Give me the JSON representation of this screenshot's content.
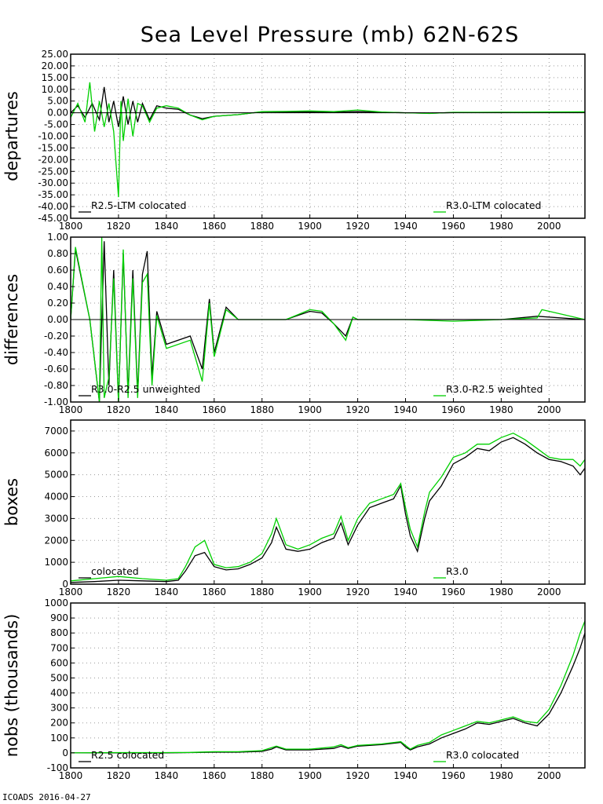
{
  "title": "Sea Level Pressure (mb) 62N-62S",
  "footer": "ICOADS 2016-04-27",
  "colors": {
    "r25": "#000000",
    "r30": "#00d000"
  },
  "chart_data": [
    {
      "type": "line",
      "id": "departures",
      "ylabel": "departures",
      "xlim": [
        1800,
        2015
      ],
      "ylim": [
        -45,
        25
      ],
      "xticks": [
        1800,
        1820,
        1840,
        1860,
        1880,
        1900,
        1920,
        1940,
        1960,
        1980,
        2000
      ],
      "xtick_labels": [
        "1800",
        "1820",
        "1840",
        "1860",
        "1880",
        "1900",
        "1920",
        "1940",
        "1960",
        "1980",
        "2000"
      ],
      "yticks": [
        25,
        20,
        15,
        10,
        5,
        0,
        -5,
        -10,
        -15,
        -20,
        -25,
        -30,
        -35,
        -40,
        -45
      ],
      "ytick_labels": [
        "25.00",
        "20.00",
        "15.00",
        "10.00",
        "5.00",
        "0.00",
        "-5.00",
        "-10.00",
        "-15.00",
        "-20.00",
        "-25.00",
        "-30.00",
        "-35.00",
        "-40.00",
        "-45.00"
      ],
      "zero_line": true,
      "legend": [
        {
          "label": "R2.5-LTM colocated",
          "position": "bottom-left"
        },
        {
          "label": "R3.0-LTM colocated",
          "position": "bottom-right"
        }
      ],
      "series": [
        {
          "name": "R2.5-LTM colocated",
          "x": [
            1800,
            1803,
            1806,
            1809,
            1812,
            1814,
            1816,
            1818,
            1820,
            1822,
            1824,
            1826,
            1828,
            1830,
            1833,
            1836,
            1840,
            1845,
            1850,
            1855,
            1860,
            1870,
            1880,
            1890,
            1900,
            1910,
            1920,
            1930,
            1940,
            1950,
            1960,
            1980,
            2000,
            2015
          ],
          "y": [
            0,
            3,
            -2,
            4,
            -3,
            11,
            -4,
            5,
            -6,
            7,
            -5,
            5,
            -4,
            4,
            -3,
            3,
            2,
            1.5,
            -1,
            -2.5,
            -1.5,
            -0.8,
            0.4,
            0.3,
            0.3,
            0.2,
            0.5,
            0.2,
            0,
            -0.2,
            0.1,
            0.2,
            0.1,
            0.3
          ]
        },
        {
          "name": "R3.0-LTM colocated",
          "x": [
            1800,
            1803,
            1806,
            1808,
            1810,
            1812,
            1814,
            1816,
            1818,
            1820,
            1821,
            1822,
            1824,
            1826,
            1828,
            1830,
            1833,
            1836,
            1840,
            1845,
            1850,
            1855,
            1860,
            1870,
            1880,
            1890,
            1900,
            1910,
            1920,
            1930,
            1940,
            1950,
            1960,
            1980,
            2000,
            2015
          ],
          "y": [
            -2,
            4,
            -4,
            13,
            -8,
            5,
            -6,
            4,
            -8,
            -36,
            5,
            -12,
            6,
            -10,
            4,
            3,
            -4,
            2,
            3,
            2,
            -1,
            -3,
            -1.5,
            -0.8,
            0.5,
            0.6,
            0.8,
            0.5,
            1.2,
            0.3,
            0,
            -0.3,
            0.2,
            0.2,
            0.3,
            0.4
          ]
        }
      ]
    },
    {
      "type": "line",
      "id": "differences",
      "ylabel": "differences",
      "xlim": [
        1800,
        2015
      ],
      "ylim": [
        -1,
        1
      ],
      "xticks": [
        1800,
        1820,
        1840,
        1860,
        1880,
        1900,
        1920,
        1940,
        1960,
        1980,
        2000
      ],
      "xtick_labels": [
        "1800",
        "1820",
        "1840",
        "1860",
        "1880",
        "1900",
        "1920",
        "1940",
        "1960",
        "1980",
        "2000"
      ],
      "yticks": [
        1,
        0.8,
        0.6,
        0.4,
        0.2,
        0,
        -0.2,
        -0.4,
        -0.6,
        -0.8,
        -1
      ],
      "ytick_labels": [
        "1.00",
        "0.80",
        "0.60",
        "0.40",
        "0.20",
        "0.00",
        "-0.20",
        "-0.40",
        "-0.60",
        "-0.80",
        "-1.00"
      ],
      "zero_line": true,
      "legend": [
        {
          "label": "R3.0-R2.5 unweighted",
          "position": "bottom-left"
        },
        {
          "label": "R3.0-R2.5 weighted",
          "position": "bottom-right"
        }
      ],
      "series": [
        {
          "name": "R3.0-R2.5 unweighted",
          "x": [
            1800,
            1802,
            1808,
            1812,
            1814,
            1816,
            1818,
            1820,
            1822,
            1824,
            1826,
            1828,
            1830,
            1832,
            1834,
            1836,
            1840,
            1850,
            1855,
            1858,
            1860,
            1865,
            1870,
            1890,
            1900,
            1905,
            1910,
            1915,
            1918,
            1920,
            1940,
            1960,
            1980,
            1995,
            2015
          ],
          "y": [
            0,
            0.85,
            0,
            -1,
            0.95,
            -0.8,
            0.6,
            -1,
            0.8,
            -0.9,
            0.6,
            -0.9,
            0.55,
            0.83,
            -0.7,
            0.1,
            -0.3,
            -0.2,
            -0.6,
            0.25,
            -0.4,
            0.15,
            0,
            0,
            0.1,
            0.08,
            -0.05,
            -0.2,
            0.03,
            0,
            0,
            0,
            0,
            0.04,
            0
          ]
        },
        {
          "name": "R3.0-R2.5 weighted",
          "x": [
            1800,
            1802,
            1808,
            1812,
            1813,
            1814,
            1816,
            1818,
            1820,
            1822,
            1824,
            1826,
            1828,
            1830,
            1832,
            1834,
            1836,
            1840,
            1850,
            1855,
            1858,
            1860,
            1865,
            1870,
            1890,
            1900,
            1905,
            1910,
            1915,
            1918,
            1920,
            1940,
            1960,
            1980,
            1995,
            1997,
            2015
          ],
          "y": [
            0,
            0.88,
            0,
            -1,
            1,
            -0.95,
            -0.7,
            0.5,
            -1,
            0.85,
            -0.95,
            0.5,
            -0.95,
            0.45,
            0.55,
            -0.8,
            0.05,
            -0.35,
            -0.25,
            -0.75,
            0.2,
            -0.45,
            0.12,
            0,
            0,
            0.12,
            0.1,
            -0.05,
            -0.25,
            0.03,
            0,
            0,
            -0.02,
            0,
            0.02,
            0.12,
            0
          ]
        }
      ]
    },
    {
      "type": "line",
      "id": "boxes",
      "ylabel": "boxes",
      "xlim": [
        1800,
        2015
      ],
      "ylim": [
        0,
        7500
      ],
      "xticks": [
        1800,
        1820,
        1840,
        1860,
        1880,
        1900,
        1920,
        1940,
        1960,
        1980,
        2000
      ],
      "xtick_labels": [
        "1800",
        "1820",
        "1840",
        "1860",
        "1880",
        "1900",
        "1920",
        "1940",
        "1960",
        "1980",
        "2000"
      ],
      "yticks": [
        7000,
        6000,
        5000,
        4000,
        3000,
        2000,
        1000,
        0
      ],
      "ytick_labels": [
        "7000",
        "6000",
        "5000",
        "4000",
        "3000",
        "2000",
        "1000",
        "0"
      ],
      "zero_line": false,
      "legend": [
        {
          "label": "colocated",
          "position": "bottom-left"
        },
        {
          "label": "R3.0",
          "position": "bottom-right"
        }
      ],
      "series": [
        {
          "name": "colocated",
          "x": [
            1800,
            1810,
            1820,
            1830,
            1840,
            1845,
            1848,
            1852,
            1856,
            1860,
            1865,
            1870,
            1875,
            1880,
            1884,
            1886,
            1890,
            1895,
            1900,
            1905,
            1910,
            1913,
            1916,
            1920,
            1925,
            1930,
            1935,
            1938,
            1940,
            1942,
            1945,
            1948,
            1950,
            1955,
            1960,
            1965,
            1970,
            1975,
            1980,
            1985,
            1990,
            1995,
            2000,
            2005,
            2010,
            2013,
            2015
          ],
          "y": [
            80,
            120,
            180,
            150,
            120,
            180,
            600,
            1300,
            1450,
            800,
            650,
            700,
            900,
            1200,
            1900,
            2600,
            1600,
            1500,
            1600,
            1900,
            2100,
            2800,
            1800,
            2700,
            3500,
            3700,
            3900,
            4500,
            3200,
            2200,
            1500,
            3000,
            3800,
            4500,
            5500,
            5800,
            6200,
            6100,
            6500,
            6700,
            6400,
            6000,
            5700,
            5600,
            5400,
            5000,
            5300
          ]
        },
        {
          "name": "R3.0",
          "x": [
            1800,
            1810,
            1820,
            1830,
            1840,
            1845,
            1848,
            1852,
            1856,
            1860,
            1865,
            1870,
            1875,
            1880,
            1884,
            1886,
            1890,
            1895,
            1900,
            1905,
            1910,
            1913,
            1916,
            1920,
            1925,
            1930,
            1935,
            1938,
            1940,
            1942,
            1945,
            1948,
            1950,
            1955,
            1960,
            1965,
            1970,
            1975,
            1980,
            1985,
            1990,
            1995,
            2000,
            2005,
            2010,
            2013,
            2015
          ],
          "y": [
            150,
            250,
            350,
            250,
            180,
            250,
            800,
            1700,
            2000,
            900,
            750,
            800,
            1000,
            1400,
            2300,
            3000,
            1800,
            1600,
            1800,
            2100,
            2300,
            3100,
            2000,
            3000,
            3700,
            3900,
            4100,
            4600,
            3500,
            2500,
            1700,
            3300,
            4200,
            4900,
            5800,
            6000,
            6400,
            6400,
            6700,
            6900,
            6600,
            6200,
            5800,
            5700,
            5700,
            5400,
            5700
          ]
        }
      ]
    },
    {
      "type": "line",
      "id": "nobs",
      "ylabel": "nobs (thousands)",
      "xlim": [
        1800,
        2015
      ],
      "ylim": [
        -100,
        1000
      ],
      "xticks": [
        1800,
        1820,
        1840,
        1860,
        1880,
        1900,
        1920,
        1940,
        1960,
        1980,
        2000
      ],
      "xtick_labels": [
        "1800",
        "1820",
        "1840",
        "1860",
        "1880",
        "1900",
        "1920",
        "1940",
        "1960",
        "1980",
        "2000"
      ],
      "yticks": [
        1000,
        900,
        800,
        700,
        600,
        500,
        400,
        300,
        200,
        100,
        0,
        -100
      ],
      "ytick_labels": [
        "1000",
        "900",
        "800",
        "700",
        "600",
        "500",
        "400",
        "300",
        "200",
        "100",
        "0",
        "-100"
      ],
      "zero_line": false,
      "legend": [
        {
          "label": "R2.5 colocated",
          "position": "bottom-left"
        },
        {
          "label": "R3.0 colocated",
          "position": "bottom-right"
        }
      ],
      "series": [
        {
          "name": "R2.5 colocated",
          "x": [
            1800,
            1820,
            1840,
            1850,
            1860,
            1870,
            1880,
            1884,
            1886,
            1890,
            1900,
            1910,
            1913,
            1916,
            1920,
            1930,
            1938,
            1940,
            1942,
            1945,
            1950,
            1955,
            1960,
            1965,
            1970,
            1975,
            1980,
            1985,
            1990,
            1995,
            2000,
            2005,
            2010,
            2013,
            2015
          ],
          "y": [
            0,
            0,
            0,
            2,
            5,
            5,
            10,
            25,
            40,
            20,
            20,
            30,
            45,
            30,
            45,
            55,
            70,
            40,
            20,
            40,
            60,
            100,
            130,
            160,
            200,
            190,
            210,
            230,
            200,
            180,
            260,
            400,
            580,
            700,
            800
          ]
        },
        {
          "name": "R3.0 colocated",
          "x": [
            1800,
            1820,
            1840,
            1850,
            1860,
            1870,
            1880,
            1884,
            1886,
            1890,
            1900,
            1910,
            1913,
            1916,
            1920,
            1930,
            1938,
            1940,
            1942,
            1945,
            1950,
            1955,
            1960,
            1965,
            1970,
            1975,
            1980,
            1985,
            1990,
            1995,
            2000,
            2005,
            2010,
            2013,
            2015
          ],
          "y": [
            0,
            2,
            2,
            3,
            8,
            8,
            15,
            35,
            45,
            25,
            25,
            40,
            55,
            35,
            50,
            60,
            75,
            50,
            25,
            50,
            70,
            120,
            150,
            180,
            210,
            200,
            220,
            240,
            210,
            200,
            290,
            450,
            650,
            800,
            880
          ]
        }
      ]
    }
  ]
}
